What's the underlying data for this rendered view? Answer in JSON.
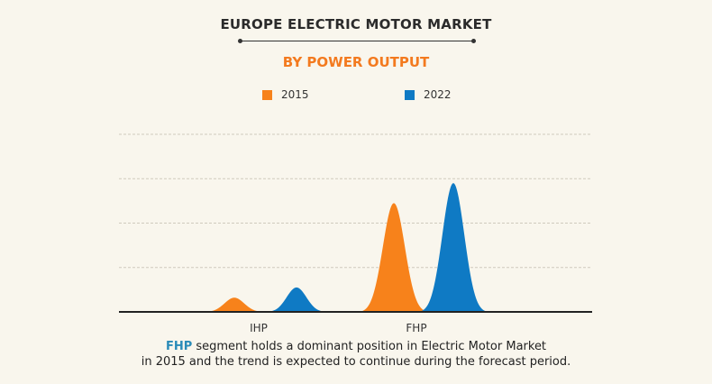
{
  "header": {
    "title": "EUROPE ELECTRIC MOTOR MARKET",
    "subtitle": "BY POWER OUTPUT"
  },
  "chart_data": {
    "type": "area",
    "style": "bell-shaped peaks per category",
    "categories": [
      "IHP",
      "FHP"
    ],
    "series": [
      {
        "name": "2015",
        "color": "#f7821b",
        "values": [
          0.32,
          2.45
        ]
      },
      {
        "name": "2022",
        "color": "#0f7ac4",
        "values": [
          0.55,
          2.9
        ]
      }
    ],
    "ylim": [
      0,
      4
    ],
    "y_ticks_labeled": false,
    "grid": "horizontal dashed",
    "legend": "top-center"
  },
  "caption": {
    "highlight": "FHP",
    "line1_rest": " segment holds a dominant position in Electric Motor Market",
    "line2": "in 2015 and the trend is expected to continue during the forecast period."
  }
}
